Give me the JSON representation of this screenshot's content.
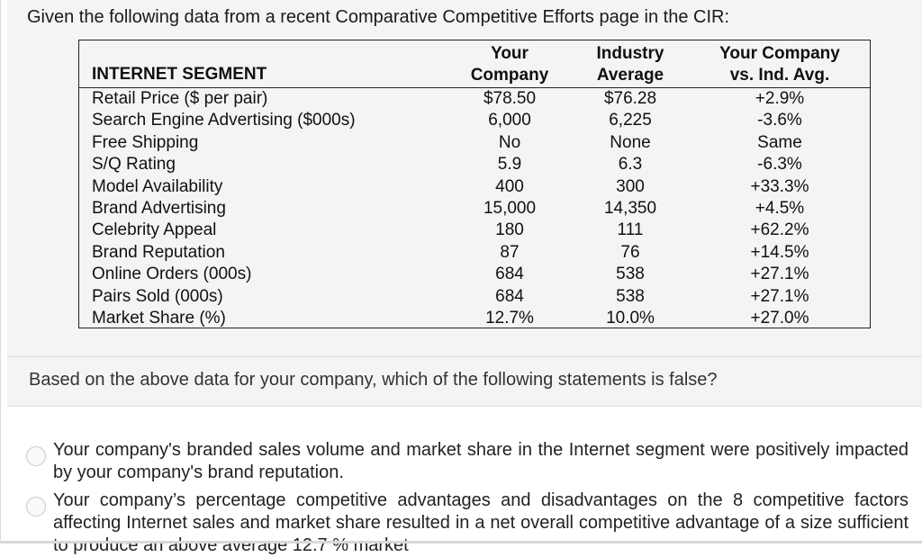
{
  "question": {
    "intro": "Given the following data from a recent Comparative Competitive Efforts page in the CIR:",
    "table": {
      "headers": {
        "segment": "INTERNET SEGMENT",
        "your_company": [
          "Your",
          "Company"
        ],
        "industry_average": [
          "Industry",
          "Average"
        ],
        "vs_ind_avg": [
          "Your Company",
          "vs. Ind. Avg."
        ]
      },
      "rows": [
        {
          "label": "Retail Price ($ per pair)",
          "your_company": "$78.50",
          "industry_average": "$76.28",
          "vs_ind_avg": "+2.9%"
        },
        {
          "label": "Search Engine Advertising ($000s)",
          "your_company": "6,000",
          "industry_average": "6,225",
          "vs_ind_avg": "-3.6%"
        },
        {
          "label": "Free Shipping",
          "your_company": "No",
          "industry_average": "None",
          "vs_ind_avg": "Same"
        },
        {
          "label": "S/Q Rating",
          "your_company": "5.9",
          "industry_average": "6.3",
          "vs_ind_avg": "-6.3%"
        },
        {
          "label": "Model Availability",
          "your_company": "400",
          "industry_average": "300",
          "vs_ind_avg": "+33.3%"
        },
        {
          "label": "Brand Advertising",
          "your_company": "15,000",
          "industry_average": "14,350",
          "vs_ind_avg": "+4.5%"
        },
        {
          "label": "Celebrity Appeal",
          "your_company": "180",
          "industry_average": "111",
          "vs_ind_avg": "+62.2%"
        },
        {
          "label": "Brand Reputation",
          "your_company": "87",
          "industry_average": "76",
          "vs_ind_avg": "+14.5%"
        },
        {
          "label": "Online Orders (000s)",
          "your_company": "684",
          "industry_average": "538",
          "vs_ind_avg": "+27.1%"
        },
        {
          "label": "Pairs Sold (000s)",
          "your_company": "684",
          "industry_average": "538",
          "vs_ind_avg": "+27.1%"
        },
        {
          "label": "Market Share (%)",
          "your_company": "12.7%",
          "industry_average": "10.0%",
          "vs_ind_avg": "+27.0%"
        }
      ]
    },
    "prompt": "Based on the above data for your company, which of the following statements is false?"
  },
  "options": [
    {
      "text": "Your company's branded sales volume and market share in the Internet segment were positively impacted by your company's brand reputation.",
      "selected": false
    },
    {
      "text": "Your company’s percentage competitive advantages and disadvantages on the 8 competitive factors affecting Internet sales and market share resulted in a net overall competitive advantage of a size sufficient to produce an above average 12.7 % market",
      "selected": false
    }
  ]
}
